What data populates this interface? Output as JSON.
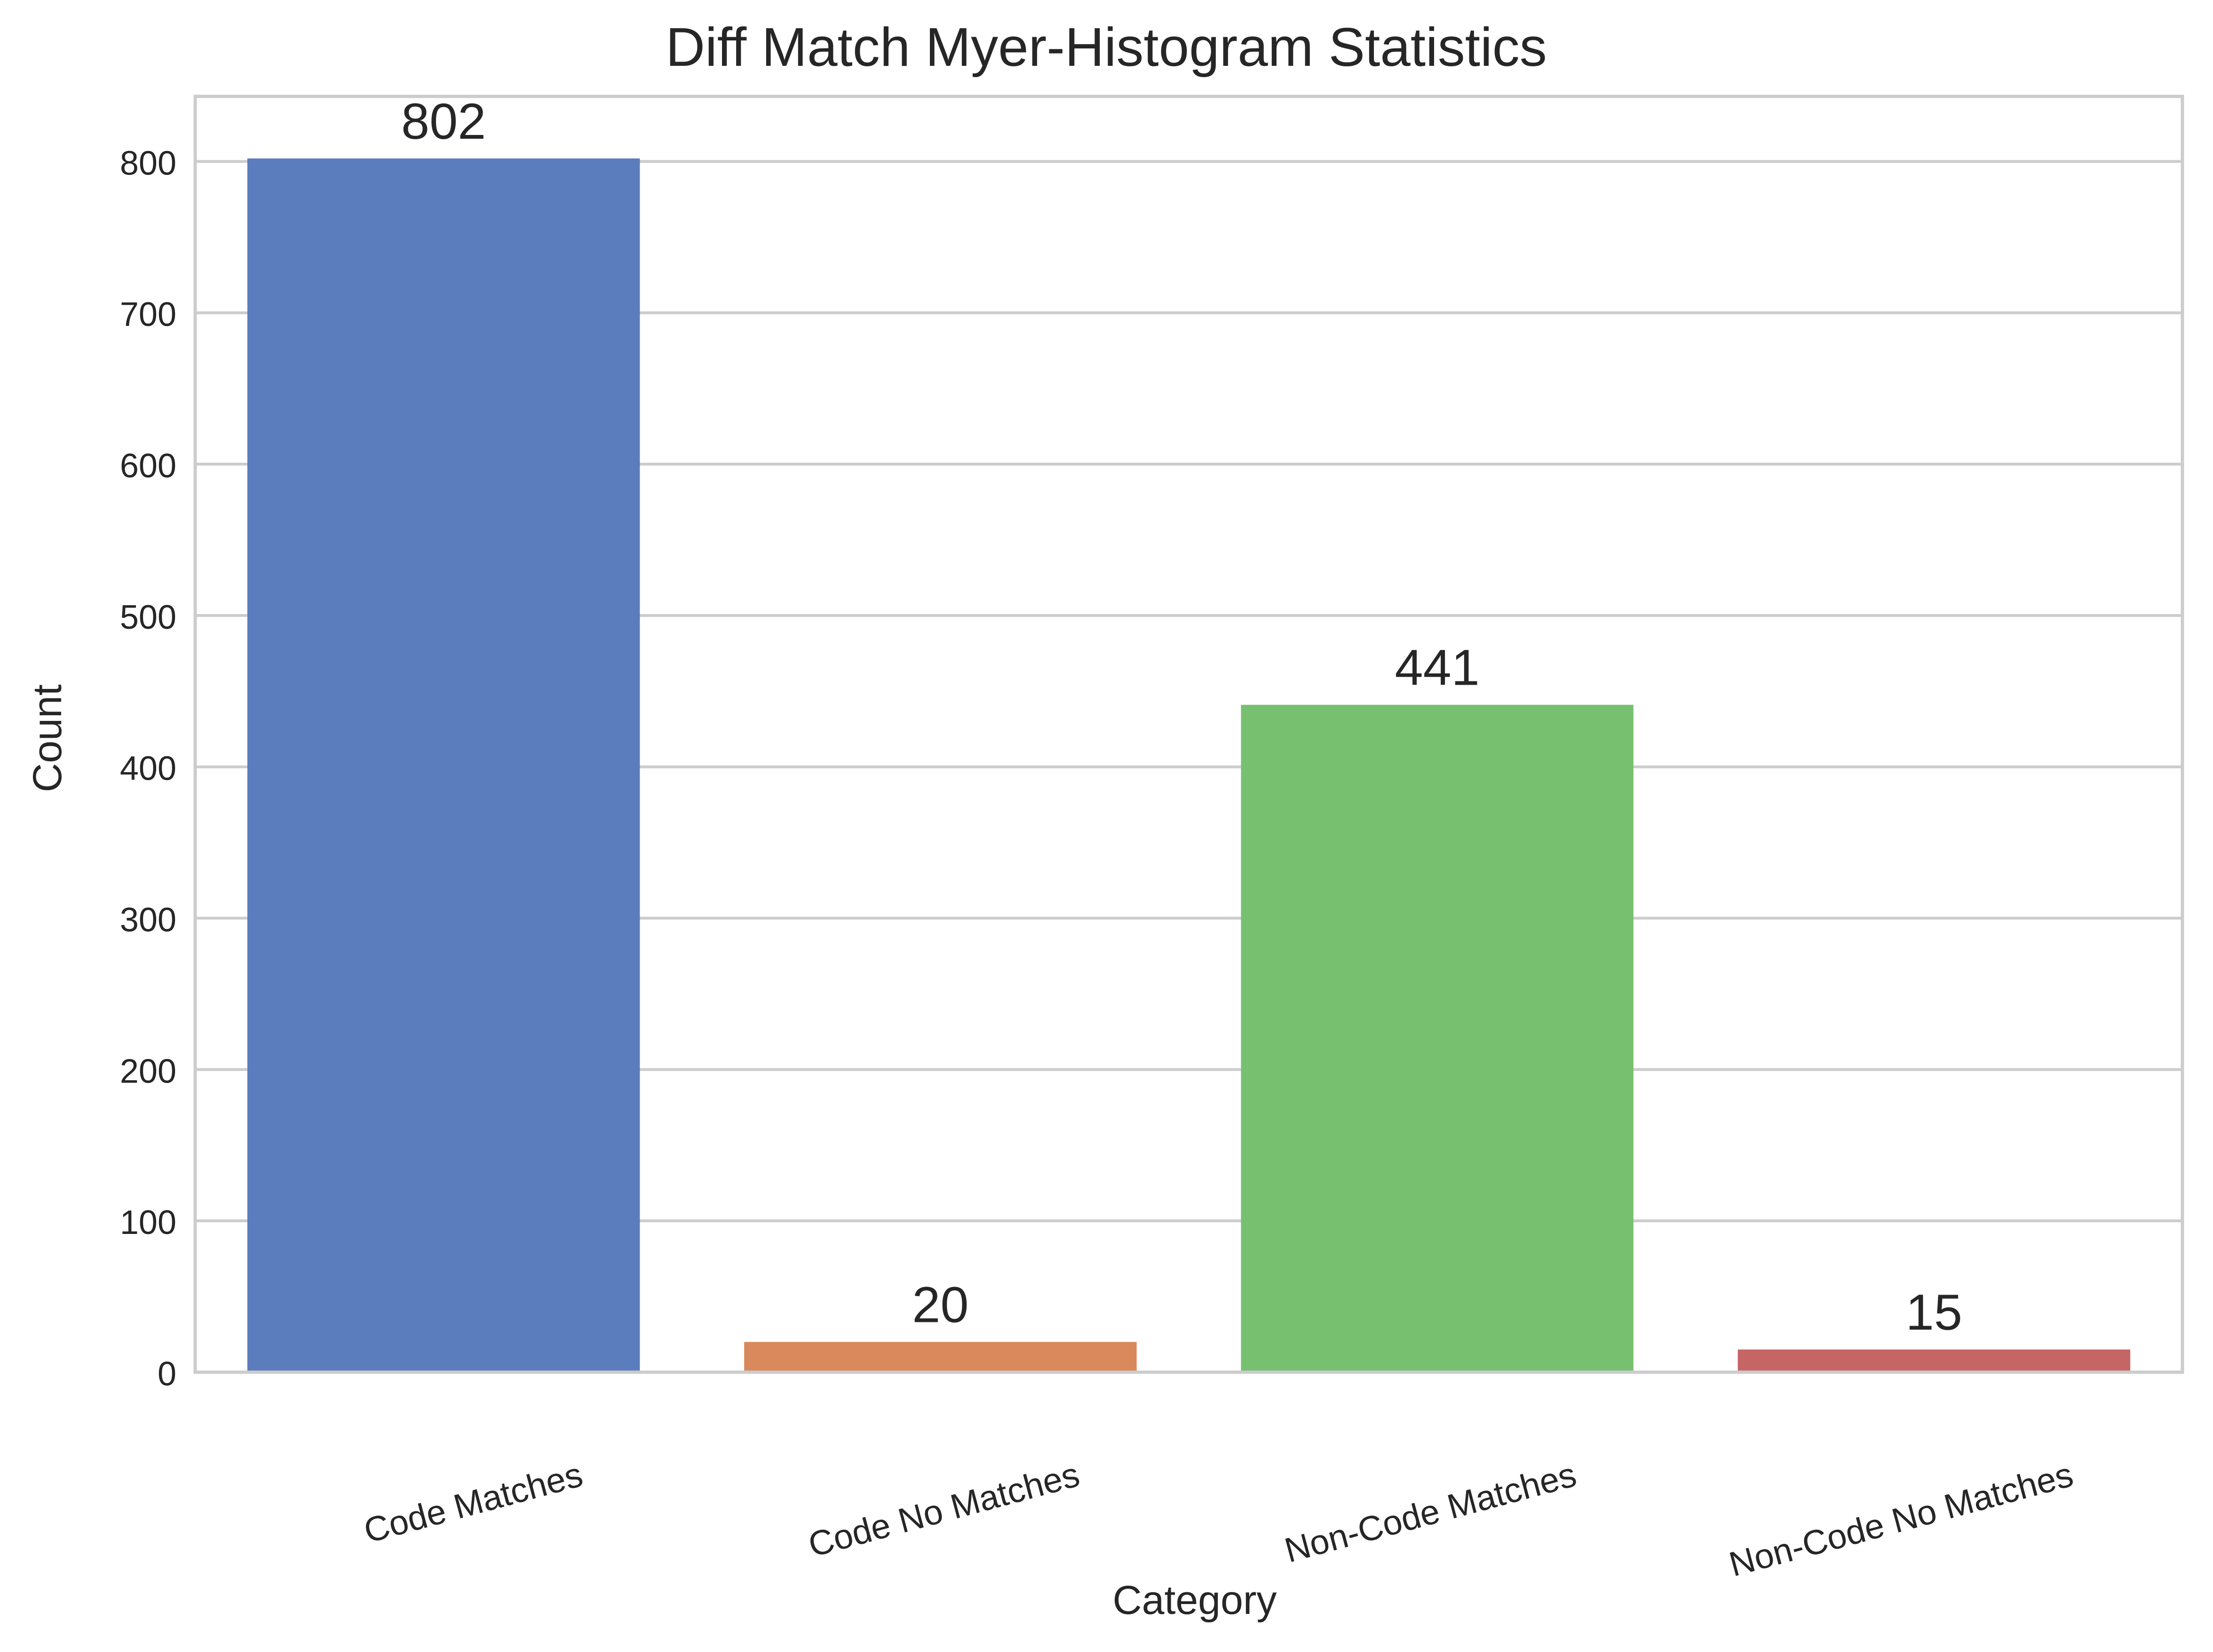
{
  "chart_data": {
    "type": "bar",
    "title": "Diff Match Myer-Histogram Statistics",
    "xlabel": "Category",
    "ylabel": "Count",
    "categories": [
      "Code Matches",
      "Code No Matches",
      "Non-Code Matches",
      "Non-Code No Matches"
    ],
    "values": [
      802,
      20,
      441,
      15
    ],
    "data_labels": [
      "802",
      "20",
      "441",
      "15"
    ],
    "colors": [
      "#5b7dbe",
      "#d9895c",
      "#77c070",
      "#c56566"
    ],
    "ylim": [
      0,
      843
    ],
    "yticks": [
      0,
      100,
      200,
      300,
      400,
      500,
      600,
      700,
      800
    ],
    "grid": "horizontal",
    "legend": "none"
  }
}
